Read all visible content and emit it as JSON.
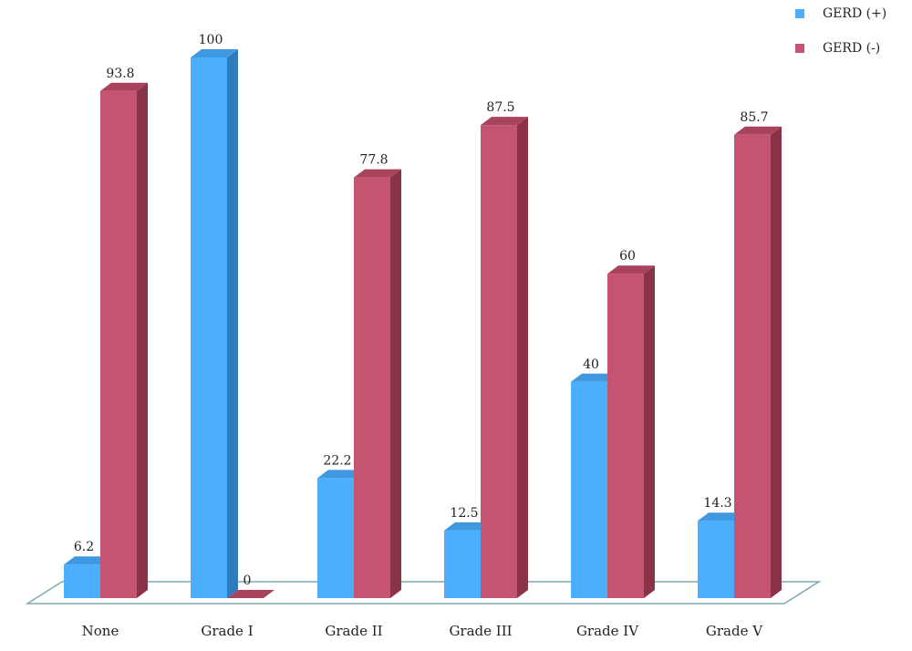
{
  "chart_data": {
    "type": "bar",
    "style": "3d-clustered",
    "categories": [
      "None",
      "Grade I",
      "Grade II",
      "Grade III",
      "Grade IV",
      "Grade V"
    ],
    "series": [
      {
        "name": "GERD (+)",
        "color": "#4BAEFF",
        "side_color": "#2F7CBC",
        "top_color": "#3F98E0",
        "values": [
          6.2,
          100,
          22.2,
          12.5,
          40,
          14.3
        ]
      },
      {
        "name": "GERD (-)",
        "color": "#C4546F",
        "side_color": "#8A3347",
        "top_color": "#A9435C",
        "values": [
          93.8,
          0,
          77.8,
          87.5,
          60,
          85.7
        ]
      }
    ],
    "ylim": [
      0,
      100
    ],
    "grid": false,
    "legend_position": "top-right"
  }
}
